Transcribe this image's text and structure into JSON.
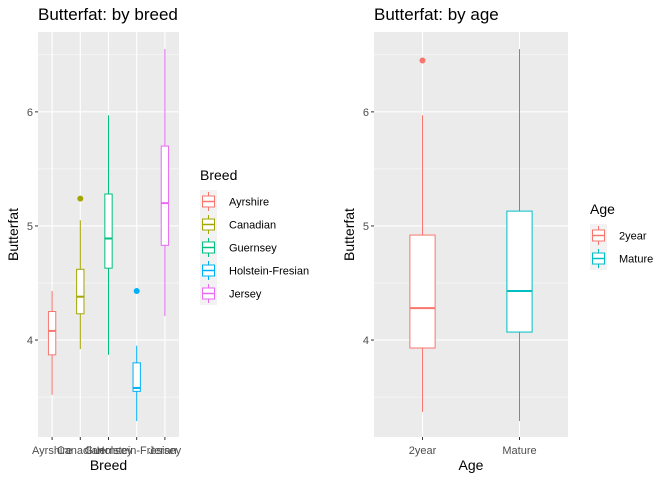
{
  "chart_data": [
    {
      "type": "boxplot",
      "title": "Butterfat: by breed",
      "xlabel": "Breed",
      "ylabel": "Butterfat",
      "ylim": [
        3.15,
        6.7
      ],
      "yticks": [
        4,
        5,
        6
      ],
      "grid": true,
      "legend_title": "Breed",
      "legend_position": "right",
      "categories": [
        "Ayrshire",
        "Canadian",
        "Guernsey",
        "Holstein-Fresian",
        "Jersey"
      ],
      "series": [
        {
          "name": "Ayrshire",
          "color": "#F8766D",
          "min": 3.52,
          "q1": 3.87,
          "median": 4.08,
          "q3": 4.25,
          "max": 4.43,
          "outliers": []
        },
        {
          "name": "Canadian",
          "color": "#A3A500",
          "min": 3.92,
          "q1": 4.23,
          "median": 4.38,
          "q3": 4.62,
          "max": 5.05,
          "outliers": [
            5.24
          ]
        },
        {
          "name": "Guernsey",
          "color": "#00BF7D",
          "min": 3.87,
          "q1": 4.63,
          "median": 4.89,
          "q3": 5.28,
          "max": 5.97,
          "outliers": []
        },
        {
          "name": "Holstein-Fresian",
          "color": "#00B0F6",
          "min": 3.29,
          "q1": 3.55,
          "median": 3.58,
          "q3": 3.8,
          "max": 3.95,
          "outliers": [
            4.43
          ]
        },
        {
          "name": "Jersey",
          "color": "#E76BF3",
          "min": 4.21,
          "q1": 4.83,
          "median": 5.2,
          "q3": 5.7,
          "max": 6.55,
          "outliers": []
        }
      ]
    },
    {
      "type": "boxplot",
      "title": "Butterfat: by age",
      "xlabel": "Age",
      "ylabel": "Butterfat",
      "ylim": [
        3.15,
        6.7
      ],
      "yticks": [
        4,
        5,
        6
      ],
      "grid": true,
      "legend_title": "Age",
      "legend_position": "right",
      "categories": [
        "2year",
        "Mature"
      ],
      "series": [
        {
          "name": "2year",
          "color": "#F8766D",
          "min": 3.37,
          "q1": 3.93,
          "median": 4.28,
          "q3": 4.92,
          "max": 5.97,
          "outliers": [
            6.45
          ]
        },
        {
          "name": "Mature",
          "color": "#00BFC4",
          "min": 3.29,
          "q1": 4.07,
          "median": 4.43,
          "q3": 5.13,
          "max": 6.55,
          "outliers": []
        }
      ]
    }
  ]
}
